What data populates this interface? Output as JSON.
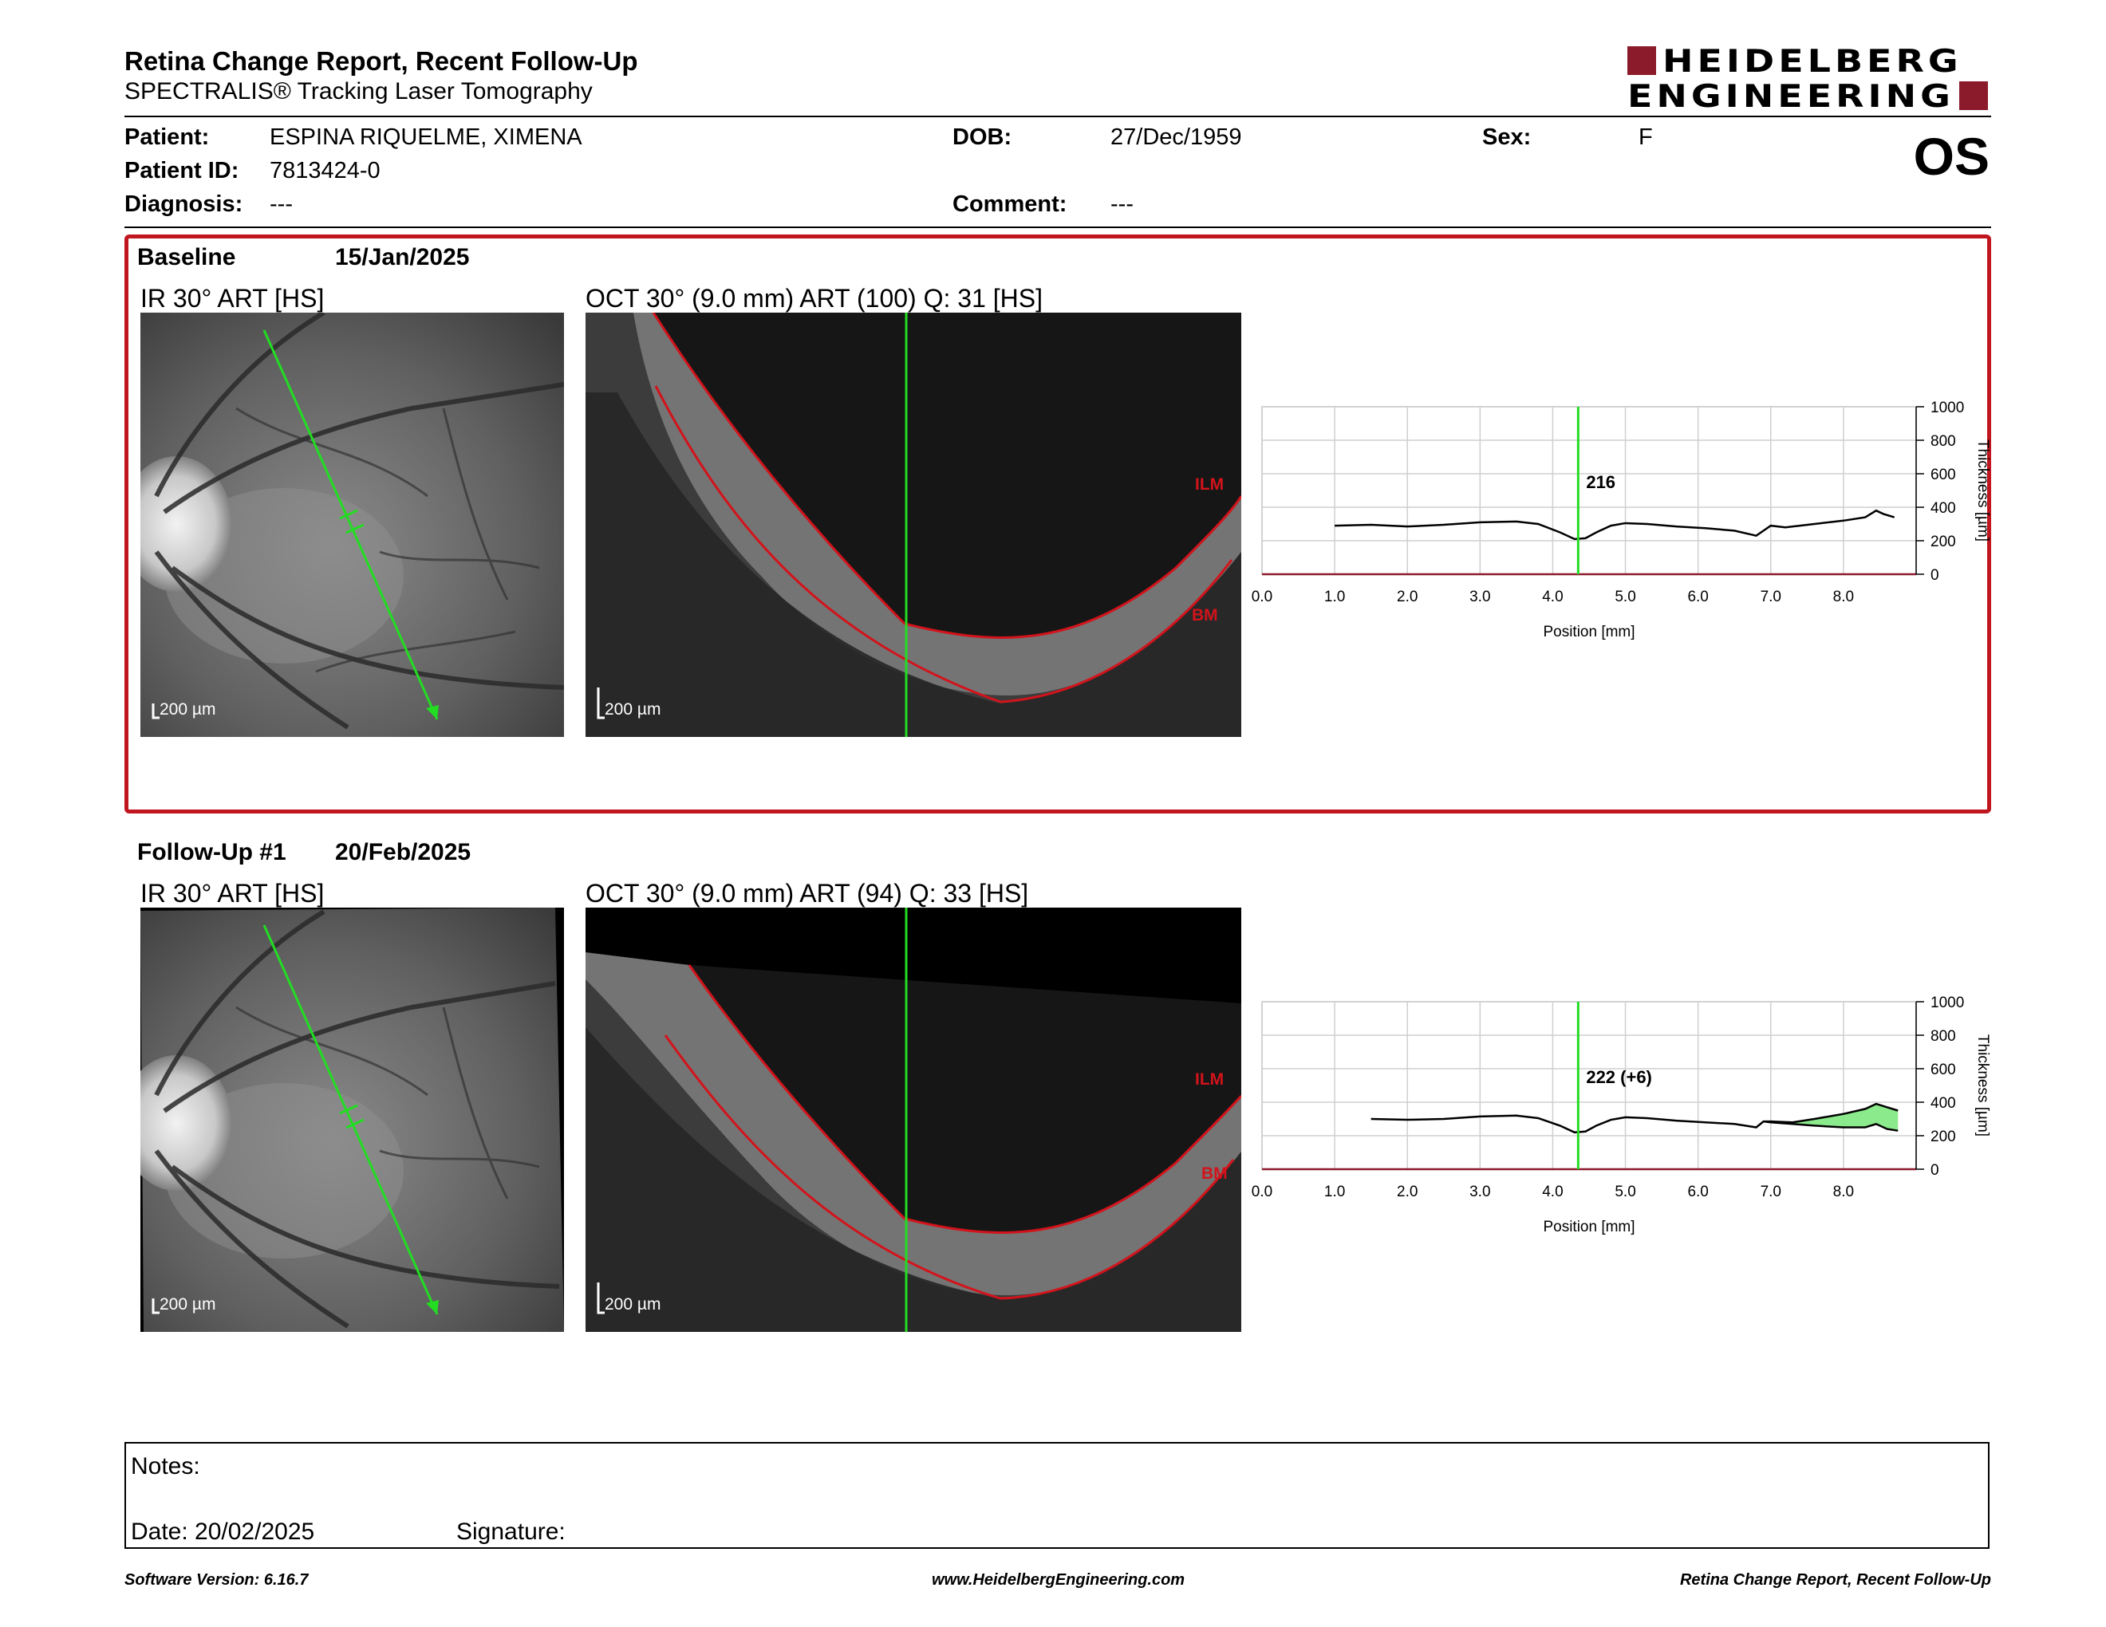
{
  "header": {
    "title": "Retina Change Report, Recent Follow-Up",
    "subtitle": "SPECTRALIS® Tracking Laser Tomography",
    "logo_line1": "HEIDELBERG",
    "logo_line2": "ENGINEERING",
    "eye": "OS"
  },
  "patient": {
    "name_label": "Patient:",
    "name": "ESPINA RIQUELME, XIMENA",
    "dob_label": "DOB:",
    "dob": "27/Dec/1959",
    "sex_label": "Sex:",
    "sex": "F",
    "id_label": "Patient ID:",
    "id": "7813424-0",
    "diagnosis_label": "Diagnosis:",
    "diagnosis": "---",
    "comment_label": "Comment:",
    "comment": "---"
  },
  "baseline": {
    "label": "Baseline",
    "date": "15/Jan/2025",
    "ir_title": "IR 30° ART [HS]",
    "oct_title": "OCT 30° (9.0 mm) ART (100) Q: 31 [HS]",
    "scale": "200 µm",
    "ilm": "ILM",
    "bm": "BM",
    "thickness_readout": "216"
  },
  "followup": {
    "label": "Follow-Up #1",
    "date": "20/Feb/2025",
    "ir_title": "IR 30° ART [HS]",
    "oct_title": "OCT 30° (9.0 mm) ART (94) Q: 33 [HS]",
    "scale": "200 µm",
    "ilm": "ILM",
    "bm": "BM",
    "thickness_readout": "222 (+6)"
  },
  "chart_data": [
    {
      "type": "line",
      "xlabel": "Position [mm]",
      "ylabel": "Thickness [µm]",
      "xlim": [
        0,
        9
      ],
      "ylim": [
        0,
        1000
      ],
      "x_ticks": [
        "0.0",
        "1.0",
        "2.0",
        "3.0",
        "4.0",
        "5.0",
        "6.0",
        "7.0",
        "8.0"
      ],
      "y_ticks": [
        "0",
        "200",
        "400",
        "600",
        "800",
        "1000"
      ],
      "marker_x": 4.35,
      "readout": "216",
      "series": [
        {
          "x": [
            1.0,
            1.5,
            2.0,
            2.5,
            3.0,
            3.5,
            3.8,
            4.1,
            4.3,
            4.45,
            4.6,
            4.8,
            5.0,
            5.3,
            5.7,
            6.1,
            6.5,
            6.8,
            6.9,
            7.0,
            7.2,
            7.6,
            8.0,
            8.3,
            8.45,
            8.55,
            8.7
          ],
          "y": [
            290,
            295,
            285,
            295,
            310,
            315,
            300,
            250,
            210,
            215,
            250,
            290,
            305,
            300,
            285,
            275,
            260,
            230,
            260,
            290,
            280,
            300,
            320,
            340,
            380,
            360,
            340
          ]
        }
      ]
    },
    {
      "type": "line",
      "xlabel": "Position [mm]",
      "ylabel": "Thickness [µm]",
      "xlim": [
        0,
        9
      ],
      "ylim": [
        0,
        1000
      ],
      "x_ticks": [
        "0.0",
        "1.0",
        "2.0",
        "3.0",
        "4.0",
        "5.0",
        "6.0",
        "7.0",
        "8.0"
      ],
      "y_ticks": [
        "0",
        "200",
        "400",
        "600",
        "800",
        "1000"
      ],
      "marker_x": 4.35,
      "readout": "222 (+6)",
      "series": [
        {
          "x": [
            1.5,
            2.0,
            2.5,
            3.0,
            3.5,
            3.8,
            4.1,
            4.3,
            4.45,
            4.6,
            4.8,
            5.0,
            5.3,
            5.7,
            6.1,
            6.5,
            6.8,
            6.9,
            7.0,
            7.3,
            7.6,
            8.0,
            8.3,
            8.45,
            8.6,
            8.75
          ],
          "y": [
            300,
            295,
            300,
            315,
            320,
            305,
            260,
            220,
            225,
            260,
            295,
            310,
            305,
            290,
            280,
            270,
            250,
            285,
            285,
            280,
            300,
            330,
            360,
            390,
            370,
            350
          ]
        },
        {
          "x": [
            6.9,
            7.0,
            7.3,
            7.6,
            8.0,
            8.3,
            8.45,
            8.6,
            8.75
          ],
          "y": [
            285,
            280,
            270,
            260,
            250,
            250,
            270,
            240,
            230
          ]
        }
      ]
    }
  ],
  "notes": {
    "notes_label": "Notes:",
    "date_label": "Date: 20/02/2025",
    "signature_label": "Signature:"
  },
  "footer": {
    "software": "Software Version: 6.16.7",
    "website": "www.HeidelbergEngineering.com",
    "report": "Retina Change Report, Recent Follow-Up"
  },
  "colors": {
    "accent": "#c0161f",
    "logo": "#8b1a2b",
    "scan_line": "#22dd22",
    "diff_fill": "#7ee87e"
  }
}
